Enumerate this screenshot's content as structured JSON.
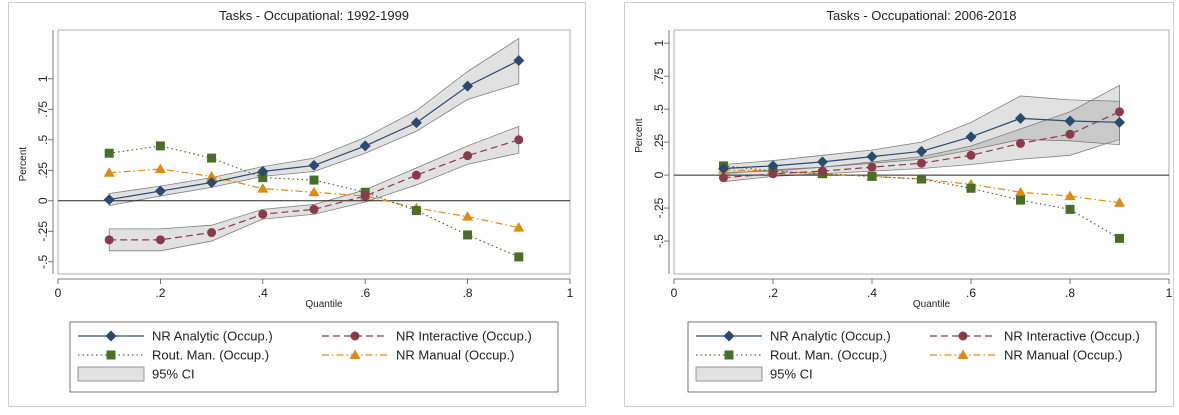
{
  "chart_data": [
    {
      "type": "line",
      "title": "Tasks - Occupational: 1992-1999",
      "xlabel": "Quantile",
      "ylabel": "Percent",
      "xlim": [
        0,
        1
      ],
      "ylim": [
        -0.6,
        1.4
      ],
      "x_ticks": [
        0,
        0.2,
        0.4,
        0.6,
        0.8,
        1
      ],
      "x_tick_labels": [
        "0",
        ".2",
        ".4",
        ".6",
        ".8",
        "1"
      ],
      "y_ticks": [
        -0.5,
        -0.25,
        0,
        0.25,
        0.5,
        0.75,
        1
      ],
      "y_tick_labels": [
        "-.5",
        "-.25",
        "0",
        ".25",
        ".5",
        ".75",
        "1"
      ],
      "zero_line": true,
      "x": [
        0.1,
        0.2,
        0.3,
        0.4,
        0.5,
        0.6,
        0.7,
        0.8,
        0.9
      ],
      "series": [
        {
          "name": "NR Analytic (Occup.)",
          "color": "#2a4a6e",
          "marker": "diamond",
          "dash": "solid",
          "values": [
            0.01,
            0.08,
            0.15,
            0.24,
            0.29,
            0.45,
            0.64,
            0.94,
            1.15
          ],
          "ci_low": [
            -0.04,
            0.04,
            0.11,
            0.2,
            0.24,
            0.39,
            0.57,
            0.83,
            0.96
          ],
          "ci_high": [
            0.06,
            0.12,
            0.19,
            0.28,
            0.35,
            0.52,
            0.74,
            1.06,
            1.33
          ]
        },
        {
          "name": "NR Interactive (Occup.)",
          "color": "#8a3a4a",
          "marker": "circle",
          "dash": "dashed",
          "values": [
            -0.32,
            -0.32,
            -0.26,
            -0.11,
            -0.07,
            0.04,
            0.21,
            0.37,
            0.5
          ],
          "ci_low": [
            -0.41,
            -0.41,
            -0.33,
            -0.15,
            -0.11,
            -0.01,
            0.13,
            0.3,
            0.39
          ],
          "ci_high": [
            -0.23,
            -0.23,
            -0.2,
            -0.07,
            -0.03,
            0.09,
            0.27,
            0.45,
            0.61
          ]
        },
        {
          "name": "Rout. Man. (Occup.)",
          "color": "#4a6e2a",
          "marker": "square",
          "dash": "dotted",
          "values": [
            0.39,
            0.45,
            0.35,
            0.19,
            0.17,
            0.07,
            -0.08,
            -0.28,
            -0.46
          ]
        },
        {
          "name": "NR Manual (Occup.)",
          "color": "#e08a10",
          "marker": "triangle",
          "dash": "dashdot",
          "values": [
            0.23,
            0.26,
            0.2,
            0.1,
            0.07,
            0.04,
            -0.06,
            -0.13,
            -0.22
          ]
        }
      ],
      "ci_label": "95% CI",
      "legend_position": "bottom"
    },
    {
      "type": "line",
      "title": "Tasks - Occupational: 2006-2018",
      "xlabel": "Quantile",
      "ylabel": "Percent",
      "xlim": [
        0,
        1
      ],
      "ylim": [
        -0.75,
        1.1
      ],
      "x_ticks": [
        0,
        0.2,
        0.4,
        0.6,
        0.8,
        1
      ],
      "x_tick_labels": [
        "0",
        ".2",
        ".4",
        ".6",
        ".8",
        "1"
      ],
      "y_ticks": [
        -0.5,
        -0.25,
        0,
        0.25,
        0.5,
        0.75,
        1
      ],
      "y_tick_labels": [
        "-.5",
        "-.25",
        "0",
        ".25",
        ".5",
        ".75",
        "1"
      ],
      "zero_line": true,
      "x": [
        0.1,
        0.2,
        0.3,
        0.4,
        0.5,
        0.6,
        0.7,
        0.8,
        0.9
      ],
      "series": [
        {
          "name": "NR Analytic (Occup.)",
          "color": "#2a4a6e",
          "marker": "diamond",
          "dash": "solid",
          "values": [
            0.05,
            0.07,
            0.1,
            0.14,
            0.18,
            0.29,
            0.43,
            0.41,
            0.4
          ],
          "ci_low": [
            0.02,
            0.03,
            0.06,
            0.09,
            0.12,
            0.19,
            0.27,
            0.26,
            0.23
          ],
          "ci_high": [
            0.08,
            0.11,
            0.15,
            0.19,
            0.25,
            0.4,
            0.6,
            0.57,
            0.56
          ]
        },
        {
          "name": "NR Interactive (Occup.)",
          "color": "#8a3a4a",
          "marker": "circle",
          "dash": "dashed",
          "values": [
            -0.02,
            0.01,
            0.03,
            0.06,
            0.09,
            0.15,
            0.24,
            0.31,
            0.48
          ],
          "ci_low": [
            -0.05,
            -0.01,
            0.01,
            0.03,
            0.05,
            0.08,
            0.12,
            0.15,
            0.27
          ],
          "ci_high": [
            0.01,
            0.04,
            0.06,
            0.1,
            0.14,
            0.22,
            0.35,
            0.48,
            0.68
          ]
        },
        {
          "name": "Rout. Man. (Occup.)",
          "color": "#4a6e2a",
          "marker": "square",
          "dash": "dotted",
          "values": [
            0.07,
            0.03,
            0.01,
            -0.01,
            -0.03,
            -0.1,
            -0.19,
            -0.26,
            -0.48
          ]
        },
        {
          "name": "NR Manual (Occup.)",
          "color": "#e08a10",
          "marker": "triangle",
          "dash": "dashdot",
          "values": [
            0.04,
            0.03,
            0.01,
            -0.01,
            -0.03,
            -0.07,
            -0.13,
            -0.16,
            -0.21
          ]
        }
      ],
      "ci_label": "95% CI",
      "legend_position": "bottom"
    }
  ]
}
